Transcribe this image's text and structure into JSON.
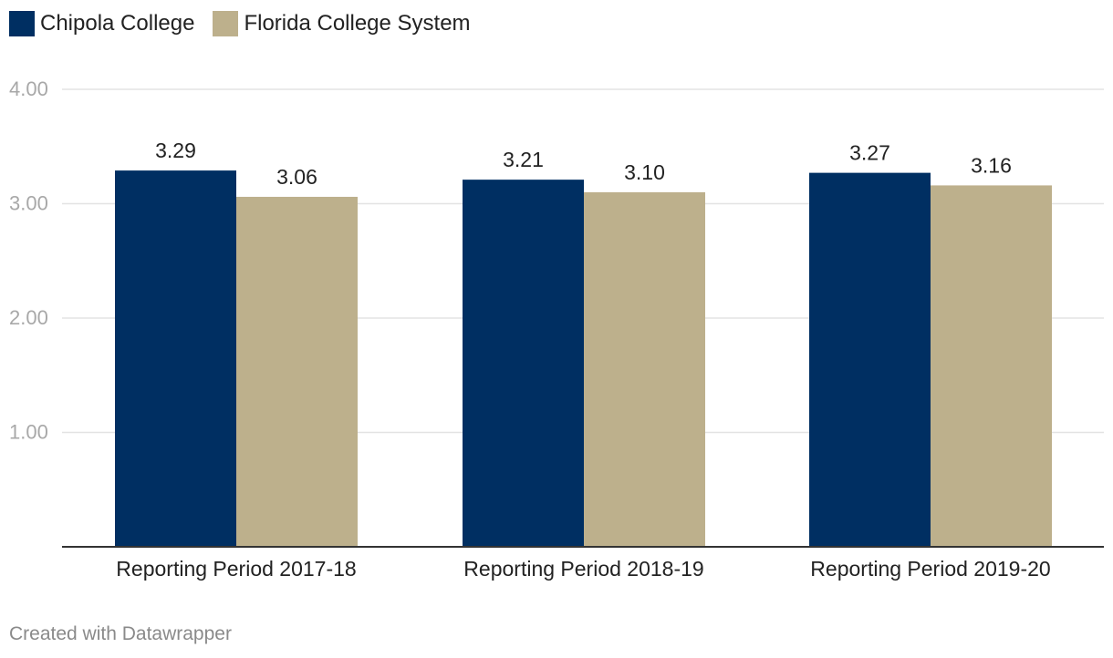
{
  "legend": {
    "items": [
      {
        "label": "Chipola College",
        "color": "#002F62"
      },
      {
        "label": "Florida College System",
        "color": "#BDB08C"
      }
    ]
  },
  "chart_data": {
    "type": "bar",
    "categories": [
      "Reporting Period 2017-18",
      "Reporting Period 2018-19",
      "Reporting Period 2019-20"
    ],
    "series": [
      {
        "name": "Chipola College",
        "color": "#002F62",
        "values": [
          3.29,
          3.21,
          3.27
        ],
        "labels": [
          "3.29",
          "3.21",
          "3.27"
        ]
      },
      {
        "name": "Florida College System",
        "color": "#BDB08C",
        "values": [
          3.06,
          3.1,
          3.16
        ],
        "labels": [
          "3.06",
          "3.10",
          "3.16"
        ]
      }
    ],
    "yticks": [
      1,
      2,
      3,
      4
    ],
    "ytick_labels": [
      "1.00",
      "2.00",
      "3.00",
      "4.00"
    ],
    "ylim": [
      0,
      4
    ],
    "title": "",
    "xlabel": "",
    "ylabel": "",
    "grid": true,
    "legend_position": "top-left"
  },
  "footer": {
    "credit": "Created with Datawrapper"
  }
}
